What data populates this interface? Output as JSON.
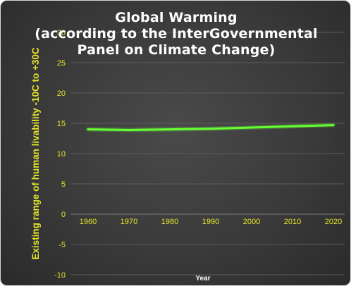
{
  "chart_data": {
    "type": "line",
    "title_lines": [
      "Global Warming",
      "(according to the InterGovernmental",
      "Panel on Climate Change)"
    ],
    "xlabel": "Year",
    "ylabel": "Existing range of human livability -10C  to +30C",
    "x": [
      1960,
      1970,
      1980,
      1990,
      2000,
      2010,
      2020
    ],
    "x_tick_labels": [
      "1960",
      "1970",
      "1980",
      "1990",
      "2000",
      "2010",
      "2020"
    ],
    "y_tick_labels": [
      "-10",
      "-5",
      "0",
      "5",
      "10",
      "15",
      "20",
      "25",
      "30"
    ],
    "ylim": [
      -10,
      30
    ],
    "grid": true,
    "legend": "none",
    "series": [
      {
        "values": [
          14.0,
          13.9,
          14.0,
          14.1,
          14.3,
          14.5,
          14.7
        ],
        "color": "#66ff33"
      }
    ],
    "colors": {
      "background": "#3c3c3c",
      "text": "#e5e52c",
      "title": "#ffffff",
      "line": "#66ff33"
    }
  }
}
